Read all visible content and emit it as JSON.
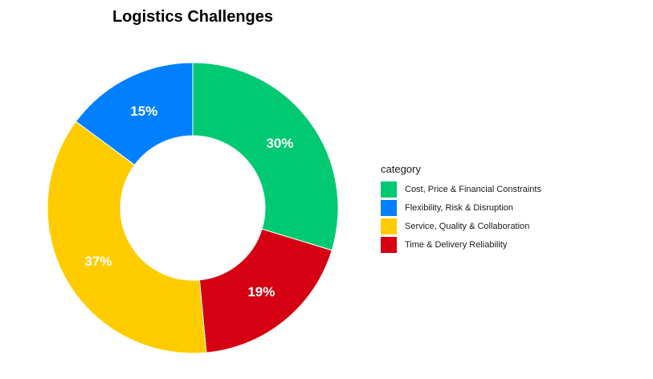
{
  "chart_data": {
    "type": "pie",
    "donut": true,
    "title": "Logistics Challenges",
    "legend_title": "category",
    "legend_position": "right",
    "start_category": "Cost, Price & Financial Constraints",
    "slices": [
      {
        "label": "Cost, Price & Financial Constraints",
        "value": 30,
        "display": "30%",
        "color": "#00C972"
      },
      {
        "label": "Time & Delivery Reliability",
        "value": 19,
        "display": "19%",
        "color": "#D50011"
      },
      {
        "label": "Service, Quality & Collaboration",
        "value": 37,
        "display": "37%",
        "color": "#FFCC00"
      },
      {
        "label": "Flexibility, Risk & Disruption",
        "value": 15,
        "display": "15%",
        "color": "#0080FF"
      }
    ],
    "legend": [
      {
        "label": "Cost, Price & Financial Constraints",
        "color": "#00C972"
      },
      {
        "label": "Flexibility, Risk & Disruption",
        "color": "#0080FF"
      },
      {
        "label": "Service, Quality & Collaboration",
        "color": "#FFCC00"
      },
      {
        "label": "Time & Delivery Reliability",
        "color": "#D50011"
      }
    ]
  }
}
